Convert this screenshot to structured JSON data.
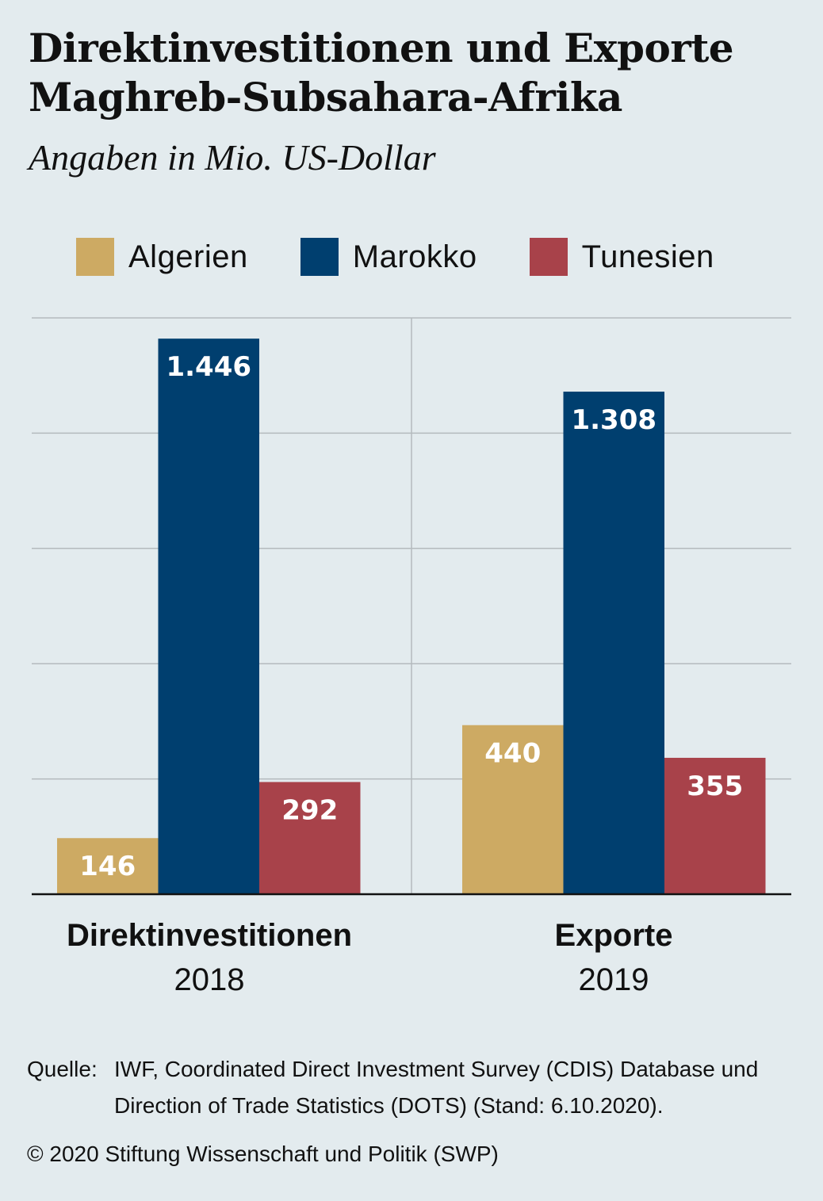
{
  "title_line1": "Direktinvestitionen und Exporte",
  "title_line2": "Maghreb-Subsahara-Afrika",
  "subtitle": "Angaben in Mio. US-Dollar",
  "legend": [
    {
      "label": "Algerien",
      "color": "#cdaa63"
    },
    {
      "label": "Marokko",
      "color": "#003f6f"
    },
    {
      "label": "Tunesien",
      "color": "#a8424a"
    }
  ],
  "categories": [
    {
      "name": "Direktinvestitionen",
      "year": "2018"
    },
    {
      "name": "Exporte",
      "year": "2019"
    }
  ],
  "source_label": "Quelle:",
  "source_text": "IWF, Coordinated Direct Investment Survey (CDIS) Database und Direction of Trade Statistics (DOTS) (Stand: 6.10.2020).",
  "copyright": "© 2020 Stiftung Wissenschaft und Politik (SWP)",
  "chart_data": {
    "type": "bar",
    "title": "Direktinvestitionen und Exporte Maghreb-Subsahara-Afrika",
    "subtitle": "Angaben in Mio. US-Dollar",
    "categories": [
      "Direktinvestitionen 2018",
      "Exporte 2019"
    ],
    "series": [
      {
        "name": "Algerien",
        "values": [
          146,
          440
        ],
        "labels": [
          "146",
          "440"
        ],
        "color": "#cdaa63"
      },
      {
        "name": "Marokko",
        "values": [
          1446,
          1308
        ],
        "labels": [
          "1.446",
          "1.308"
        ],
        "color": "#003f6f"
      },
      {
        "name": "Tunesien",
        "values": [
          292,
          355
        ],
        "labels": [
          "292",
          "355"
        ],
        "color": "#a8424a"
      }
    ],
    "ylim": [
      0,
      1500
    ],
    "ygrid_step": 300,
    "grid": true,
    "legend": "top"
  }
}
